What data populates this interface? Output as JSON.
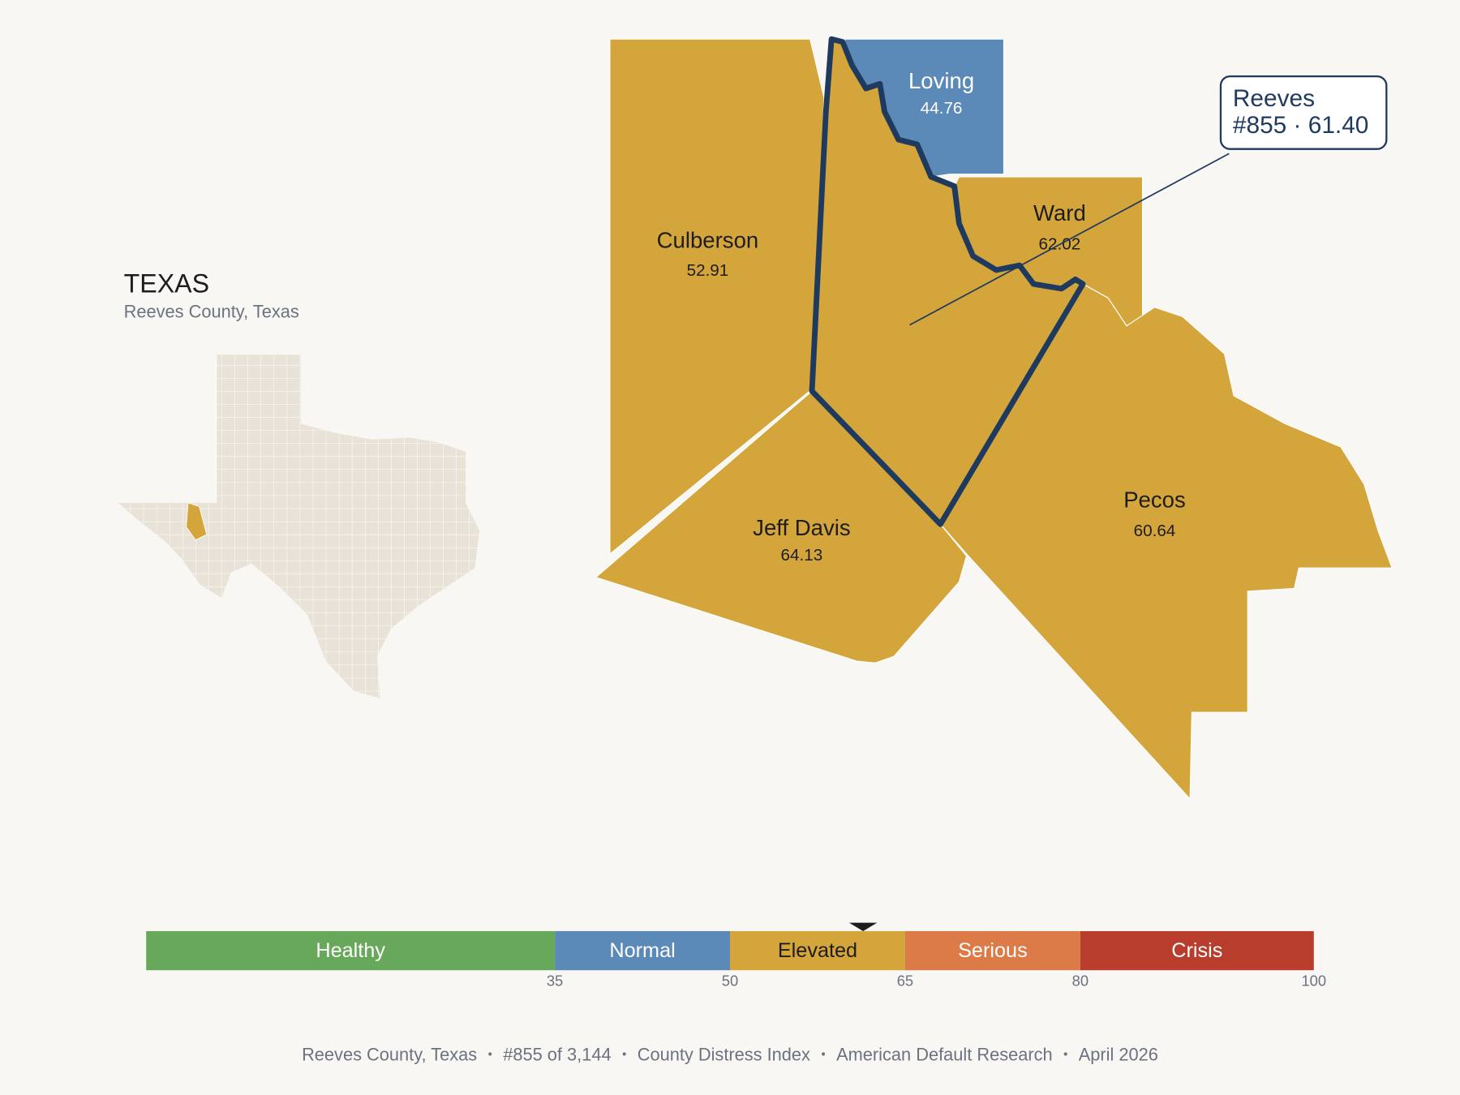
{
  "header": {
    "title": "TEXAS",
    "subtitle": "Reeves County, Texas"
  },
  "counties": [
    {
      "name": "Culberson",
      "value": 52.91
    },
    {
      "name": "Loving",
      "value": 44.76
    },
    {
      "name": "Ward",
      "value": 62.02
    },
    {
      "name": "Jeff Davis",
      "value": 64.13
    },
    {
      "name": "Pecos",
      "value": 60.64
    }
  ],
  "callout": {
    "name": "Reeves",
    "detail": "#855 · 61.40"
  },
  "scale": {
    "range": [
      0,
      100
    ],
    "marker": 61.4,
    "bands": [
      {
        "label": "Healthy",
        "color": "#68a85a"
      },
      {
        "label": "Normal",
        "color": "#5b8ab8"
      },
      {
        "label": "Elevated",
        "color": "#d4a53b"
      },
      {
        "label": "Serious",
        "color": "#dc7a48"
      },
      {
        "label": "Crisis",
        "color": "#b83d2d"
      }
    ],
    "ticks": [
      35,
      50,
      65,
      80,
      100
    ]
  },
  "footer": [
    "Reeves County, Texas",
    "#855 of 3,144",
    "County Distress Index",
    "American Default Research",
    "April 2026"
  ]
}
